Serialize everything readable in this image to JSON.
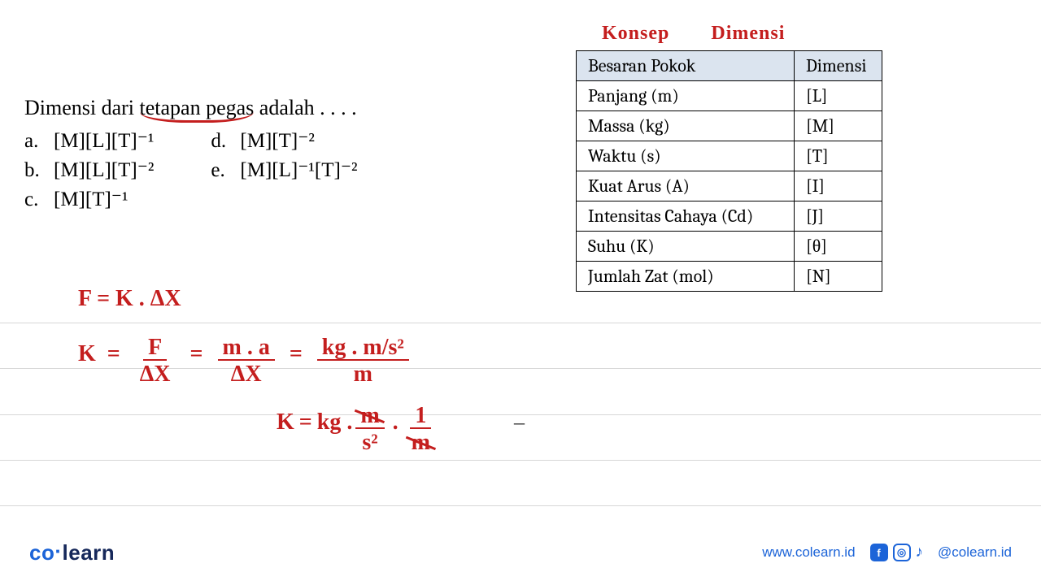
{
  "question": {
    "stem_prefix": "Dimensi dari ",
    "stem_underlined": "tetapan pegas",
    "stem_suffix": " adalah . . . .",
    "options": {
      "a": "[M][L][T]⁻¹",
      "b": "[M][L][T]⁻²",
      "c": "[M][T]⁻¹",
      "d": "[M][T]⁻²",
      "e": "[M][L]⁻¹[T]⁻²"
    }
  },
  "handwritten_title": {
    "word1": "Konsep",
    "word2": "Dimensi"
  },
  "dim_table": {
    "header": {
      "col1": "Besaran Pokok",
      "col2": "Dimensi"
    },
    "rows": [
      {
        "q": "Panjang (m)",
        "d": "[L]"
      },
      {
        "q": "Massa (kg)",
        "d": "[M]"
      },
      {
        "q": "Waktu (s)",
        "d": "[T]"
      },
      {
        "q": "Kuat Arus (A)",
        "d": "[I]"
      },
      {
        "q": "Intensitas Cahaya (Cd)",
        "d": "[J]"
      },
      {
        "q": "Suhu (K)",
        "d": "[θ]"
      },
      {
        "q": "Jumlah Zat (mol)",
        "d": "[N]"
      }
    ]
  },
  "handwriting": {
    "line1": "F = K . ΔX",
    "line2": {
      "lhs": "K",
      "eq": "=",
      "f1_num": "F",
      "f1_den": "ΔX",
      "f2_num": "m . a",
      "f2_den": "ΔX",
      "f3_num": "kg . m/s²",
      "f3_den": "m"
    },
    "line3": {
      "lhs": "K",
      "eq": "=",
      "kg": "kg .",
      "f1_num": "m",
      "f1_den": "s²",
      "dot": ".",
      "f2_num": "1",
      "f2_den": "m"
    },
    "dash": "–"
  },
  "footer": {
    "logo": {
      "co": "co",
      "dot": "·",
      "learn": "learn"
    },
    "url": "www.colearn.id",
    "handle": "@colearn.id",
    "icons": {
      "fb": "f",
      "ig": "◎",
      "tiktok": "♪"
    }
  },
  "colors": {
    "red": "#c41e1e",
    "blue": "#1c64d8",
    "navy": "#16285a",
    "table_header_bg": "#dbe4ef",
    "rule": "#d7d7d7"
  }
}
